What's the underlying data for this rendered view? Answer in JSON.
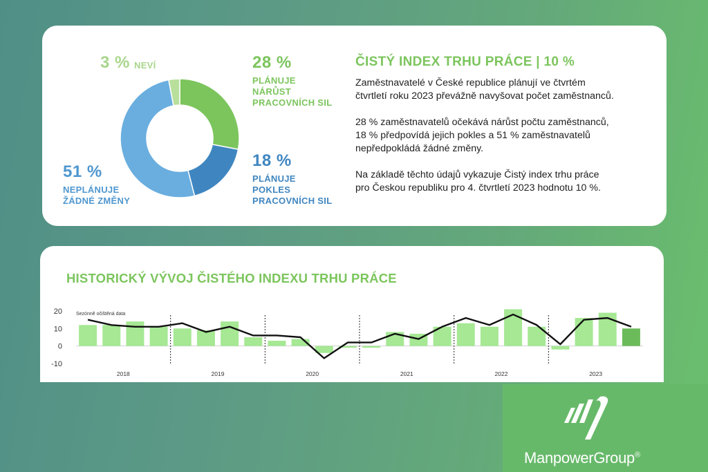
{
  "summary": {
    "slices": [
      {
        "key": "plan_growth",
        "percent_label": "28 %",
        "label_lines": [
          "PLÁNUJE",
          "NÁRŮST",
          "PRACOVNÍCH SIL"
        ],
        "value": 28,
        "color": "#7cc55d"
      },
      {
        "key": "plan_decline",
        "percent_label": "18 %",
        "label_lines": [
          "PLÁNUJE",
          "POKLES",
          "PRACOVNÍCH SIL"
        ],
        "value": 18,
        "color": "#3f86c0"
      },
      {
        "key": "no_change",
        "percent_label": "51 %",
        "label_lines": [
          "NEPLÁNUJE",
          "ŽÁDNÉ ZMĚNY"
        ],
        "value": 51,
        "color": "#6aaedf"
      },
      {
        "key": "dont_know",
        "percent_label": "3 %",
        "label_lines": [
          "NEVÍ"
        ],
        "value": 3,
        "color": "#b8df9c"
      }
    ]
  },
  "info": {
    "title": "ČISTÝ INDEX TRHU PRÁCE | 10 %",
    "paragraphs": [
      [
        "Zaměstnavatelé v České republice plánují ve čtvrtém",
        "čtvrtletí roku 2023 převážně navyšovat počet zaměstnanců."
      ],
      [
        "28 % zaměstnavatelů očekává nárůst počtu zaměstnanců,",
        "18 % předpovídá jejich pokles a 51 % zaměstnavatelů",
        "nepředpokládá žádné změny."
      ],
      [
        "Na základě těchto údajů vykazuje Čistý index trhu práce",
        "pro Českou republiku pro 4. čtvrtletí 2023 hodnotu 10 %."
      ]
    ]
  },
  "history": {
    "title": "HISTORICKÝ VÝVOJ ČISTÉHO INDEXU TRHU PRÁCE"
  },
  "chart_data": [
    {
      "type": "pie",
      "categories": [
        "PLÁNUJE NÁRŮST PRACOVNÍCH SIL",
        "PLÁNUJE POKLES PRACOVNÍCH SIL",
        "NEPLÁNUJE ŽÁDNÉ ZMĚNY",
        "NEVÍ"
      ],
      "values": [
        28,
        18,
        51,
        3
      ],
      "colors": [
        "#7cc55d",
        "#3f86c0",
        "#6aaedf",
        "#b8df9c"
      ],
      "title": "",
      "donut": true
    },
    {
      "type": "bar",
      "title": "HISTORICKÝ VÝVOJ ČISTÉHO INDEXU TRHU PRÁCE",
      "annotation": "Sezónně očištěná data",
      "years": [
        "2018",
        "2019",
        "2020",
        "2021",
        "2022",
        "2023"
      ],
      "quarters_per_year": 4,
      "ylim": [
        -10,
        20
      ],
      "yticks": [
        20,
        10,
        0,
        -10
      ],
      "series": [
        {
          "kind": "bar",
          "values": [
            12,
            12,
            14,
            11,
            10,
            9,
            14,
            5,
            3,
            4,
            -4,
            -1,
            -1,
            8,
            7,
            11,
            13,
            11,
            21,
            11,
            -2,
            16,
            19,
            10
          ],
          "color": "#a6e894",
          "highlight_index": 23,
          "highlight_color": "#6cbb5a"
        },
        {
          "kind": "line",
          "values": [
            15,
            12,
            11,
            11,
            13,
            8,
            11,
            6,
            6,
            5,
            -7,
            2,
            2,
            7,
            4,
            11,
            16,
            12,
            18,
            12,
            1,
            15,
            16,
            11
          ],
          "color": "#111111"
        }
      ],
      "grid": false
    }
  ],
  "brand": {
    "name": "ManpowerGroup",
    "registered_mark": "®"
  },
  "colors": {
    "accent_green": "#7cc55d",
    "accent_blue": "#4f97cf",
    "brand_block": "#67b96a"
  }
}
